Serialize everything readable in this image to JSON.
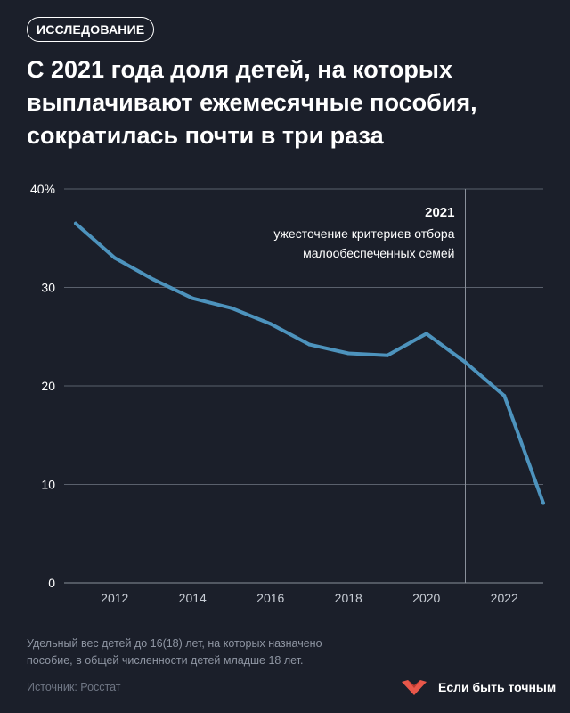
{
  "badge": "ИССЛЕДОВАНИЕ",
  "headline": "С 2021 года доля детей, на которых выплачивают ежемесячные пособия, сократилась почти в три раза",
  "chart_data": {
    "type": "line",
    "x": [
      2011,
      2012,
      2013,
      2014,
      2015,
      2016,
      2017,
      2018,
      2019,
      2020,
      2021,
      2022,
      2023
    ],
    "series": [
      {
        "values": [
          36.5,
          33.0,
          30.8,
          28.9,
          27.9,
          26.3,
          24.2,
          23.3,
          23.1,
          25.3,
          22.4,
          19.0,
          8.1
        ],
        "color": "#4d93bd"
      }
    ],
    "y_ticks": [
      0,
      10,
      20,
      30,
      40
    ],
    "y_tick_labels": [
      "0",
      "10",
      "20",
      "30",
      "40%"
    ],
    "x_ticks": [
      2012,
      2014,
      2016,
      2018,
      2020,
      2022
    ],
    "x_tick_labels": [
      "2012",
      "2014",
      "2016",
      "2018",
      "2020",
      "2022"
    ],
    "ylim": [
      0,
      40
    ],
    "xlim": [
      2010.5,
      2023.1
    ],
    "grid": true,
    "annotation": {
      "x": 2021,
      "title": "2021",
      "text_line1": "ужесточение критериев отбора",
      "text_line2": "малообеспеченных семей"
    }
  },
  "footnote_line1": "Удельный вес детей до 16(18) лет, на которых назначено",
  "footnote_line2": "пособие, в общей численности детей младше 18 лет.",
  "source": "Источник: Росстат",
  "brand": {
    "name": "Если быть точным",
    "logo_icon": "heart-chevron-icon",
    "logo_color": "#e8574a"
  },
  "colors": {
    "background": "#1b1f2a",
    "grid": "#5a606c",
    "axis_text": "#ffffff",
    "line": "#4d93bd"
  }
}
